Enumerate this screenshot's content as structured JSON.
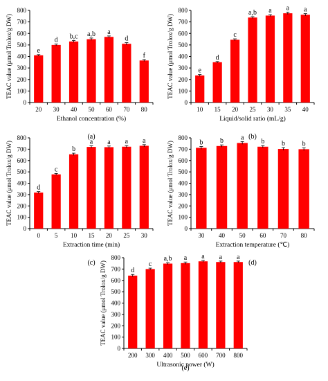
{
  "chart_data": [
    {
      "type": "bar",
      "panel_label": "(a)",
      "categories": [
        "20",
        "30",
        "40",
        "50",
        "60",
        "70",
        "80"
      ],
      "values": [
        410,
        500,
        530,
        550,
        570,
        510,
        365
      ],
      "errors": [
        6,
        8,
        8,
        10,
        8,
        10,
        8
      ],
      "letters": [
        "e",
        "d",
        "b,c",
        "a,b",
        "a",
        "d",
        "f"
      ],
      "xlabel": "Ethanol concentration (%)",
      "ylabel": "TEAC value (μmol Trolox/g DW)",
      "ylim": [
        0,
        800
      ],
      "yticks": [
        0,
        100,
        200,
        300,
        400,
        500,
        600,
        700,
        800
      ],
      "bar_color": "#ff0000"
    },
    {
      "type": "bar",
      "panel_label": "(b)",
      "categories": [
        "10",
        "15",
        "20",
        "25",
        "30",
        "35",
        "40"
      ],
      "values": [
        235,
        350,
        545,
        738,
        755,
        775,
        762
      ],
      "errors": [
        8,
        6,
        8,
        8,
        8,
        10,
        10
      ],
      "letters": [
        "e",
        "d",
        "c",
        "a,b",
        "a",
        "a",
        "a"
      ],
      "xlabel": "Liquid/solid ratio (mL/g)",
      "ylabel": "TEAC value (μmol Trolox/g DW)",
      "ylim": [
        0,
        800
      ],
      "yticks": [
        0,
        100,
        200,
        300,
        400,
        500,
        600,
        700,
        800
      ],
      "bar_color": "#ff0000"
    },
    {
      "type": "bar",
      "panel_label": "(c)",
      "categories": [
        "0",
        "5",
        "10",
        "15",
        "20",
        "25",
        "30"
      ],
      "values": [
        318,
        478,
        655,
        720,
        718,
        722,
        730
      ],
      "errors": [
        8,
        8,
        10,
        10,
        10,
        10,
        10
      ],
      "letters": [
        "d",
        "c",
        "b",
        "a",
        "a",
        "a",
        "a"
      ],
      "xlabel": "Extraction time (min)",
      "ylabel": "TEAC value (μmol Trolox/g DW)",
      "ylim": [
        0,
        800
      ],
      "yticks": [
        0,
        100,
        200,
        300,
        400,
        500,
        600,
        700,
        800
      ],
      "bar_color": "#ff0000"
    },
    {
      "type": "bar",
      "panel_label": "(d)",
      "categories": [
        "30",
        "40",
        "50",
        "60",
        "70",
        "80"
      ],
      "values": [
        712,
        728,
        755,
        722,
        702,
        700
      ],
      "errors": [
        12,
        10,
        12,
        10,
        12,
        12
      ],
      "letters": [
        "b",
        "b",
        "a",
        "b",
        "b",
        "b"
      ],
      "xlabel": "Extraction temperature (℃)",
      "ylabel": "TEAC value (μmol Trolox/g DW)",
      "ylim": [
        0,
        800
      ],
      "yticks": [
        0,
        100,
        200,
        300,
        400,
        500,
        600,
        700,
        800
      ],
      "bar_color": "#ff0000"
    },
    {
      "type": "bar",
      "panel_label": "(e)",
      "categories": [
        "200",
        "300",
        "400",
        "500",
        "600",
        "700",
        "800"
      ],
      "values": [
        642,
        700,
        748,
        752,
        768,
        762,
        762
      ],
      "errors": [
        10,
        8,
        8,
        10,
        8,
        8,
        8
      ],
      "letters": [
        "d",
        "c",
        "a,b",
        "a",
        "a",
        "a",
        "a"
      ],
      "xlabel": "Ultrasonic power (W)",
      "ylabel": "TEAC value (μmol Trolox/g DW)",
      "ylim": [
        0,
        800
      ],
      "yticks": [
        0,
        100,
        200,
        300,
        400,
        500,
        600,
        700,
        800
      ],
      "bar_color": "#ff0000"
    }
  ]
}
